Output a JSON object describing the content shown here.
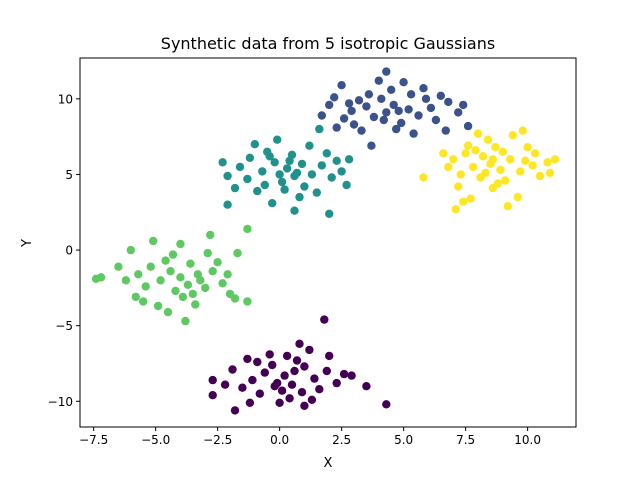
{
  "chart_data": {
    "type": "scatter",
    "title": "Synthetic data from 5 isotropic Gaussians",
    "xlabel": "X",
    "ylabel": "Y",
    "xlim": [
      -8.05,
      11.95
    ],
    "ylim": [
      -11.7,
      12.7
    ],
    "xticks": [
      -7.5,
      -5.0,
      -2.5,
      0.0,
      2.5,
      5.0,
      7.5,
      10.0
    ],
    "xtick_labels": [
      "−7.5",
      "−5.0",
      "−2.5",
      "0.0",
      "2.5",
      "5.0",
      "7.5",
      "10.0"
    ],
    "yticks": [
      -10,
      -5,
      0,
      5,
      10
    ],
    "ytick_labels": [
      "−10",
      "−5",
      "0",
      "5",
      "10"
    ],
    "grid": false,
    "legend": false,
    "series": [
      {
        "color": "#440154",
        "points": [
          [
            0.2,
            -8.3
          ],
          [
            0.5,
            -8.9
          ],
          [
            -0.6,
            -8.1
          ],
          [
            1.0,
            -7.7
          ],
          [
            0.1,
            -9.3
          ],
          [
            -1.1,
            -8.6
          ],
          [
            1.4,
            -8.5
          ],
          [
            0.7,
            -7.3
          ],
          [
            -0.3,
            -7.6
          ],
          [
            0.4,
            -9.8
          ],
          [
            -1.5,
            -9.1
          ],
          [
            1.9,
            -8.0
          ],
          [
            2.3,
            -8.8
          ],
          [
            -1.9,
            -7.9
          ],
          [
            0.9,
            -9.4
          ],
          [
            -0.8,
            -9.5
          ],
          [
            1.6,
            -9.2
          ],
          [
            -0.4,
            -6.9
          ],
          [
            1.2,
            -6.6
          ],
          [
            -1.3,
            -7.2
          ],
          [
            2.6,
            -8.2
          ],
          [
            -2.2,
            -8.9
          ],
          [
            0.0,
            -10.1
          ],
          [
            1.0,
            -10.3
          ],
          [
            -1.8,
            -10.6
          ],
          [
            1.8,
            -4.6
          ],
          [
            3.5,
            -9.0
          ],
          [
            4.3,
            -10.2
          ],
          [
            -2.7,
            -8.6
          ],
          [
            -2.7,
            -9.6
          ],
          [
            2.0,
            -7.0
          ],
          [
            -0.1,
            -8.8
          ],
          [
            0.6,
            -8.0
          ],
          [
            -0.9,
            -7.4
          ],
          [
            1.3,
            -9.9
          ],
          [
            0.3,
            -7.0
          ],
          [
            2.9,
            -8.3
          ],
          [
            -1.2,
            -10.1
          ],
          [
            0.8,
            -6.2
          ],
          [
            -0.2,
            -9.0
          ]
        ]
      },
      {
        "color": "#3b528b",
        "points": [
          [
            4.3,
            9.1
          ],
          [
            4.6,
            9.6
          ],
          [
            3.8,
            8.8
          ],
          [
            5.2,
            9.3
          ],
          [
            4.1,
            10.0
          ],
          [
            3.5,
            9.5
          ],
          [
            5.6,
            8.9
          ],
          [
            4.9,
            8.4
          ],
          [
            3.2,
            9.9
          ],
          [
            4.5,
            10.6
          ],
          [
            2.9,
            9.2
          ],
          [
            6.1,
            9.4
          ],
          [
            5.9,
            10.0
          ],
          [
            2.6,
            8.7
          ],
          [
            4.0,
            11.2
          ],
          [
            4.3,
            11.8
          ],
          [
            3.3,
            7.9
          ],
          [
            5.4,
            7.7
          ],
          [
            2.2,
            10.1
          ],
          [
            6.3,
            8.6
          ],
          [
            6.8,
            9.8
          ],
          [
            7.2,
            9.1
          ],
          [
            7.6,
            8.2
          ],
          [
            2.0,
            9.6
          ],
          [
            2.5,
            10.9
          ],
          [
            5.0,
            11.1
          ],
          [
            3.7,
            6.9
          ],
          [
            6.7,
            7.9
          ],
          [
            1.7,
            8.9
          ],
          [
            4.7,
            8.0
          ],
          [
            3.0,
            8.3
          ],
          [
            5.8,
            10.7
          ],
          [
            2.3,
            8.1
          ],
          [
            7.4,
            9.6
          ],
          [
            4.2,
            8.6
          ],
          [
            3.6,
            10.3
          ],
          [
            5.3,
            10.3
          ],
          [
            4.8,
            9.2
          ],
          [
            2.8,
            9.7
          ],
          [
            6.5,
            10.2
          ]
        ]
      },
      {
        "color": "#21918c",
        "points": [
          [
            0.3,
            5.4
          ],
          [
            0.6,
            4.9
          ],
          [
            -0.2,
            5.8
          ],
          [
            0.9,
            5.7
          ],
          [
            0.1,
            4.5
          ],
          [
            -0.7,
            5.2
          ],
          [
            1.3,
            5.0
          ],
          [
            0.5,
            6.3
          ],
          [
            -0.5,
            6.5
          ],
          [
            0.2,
            4.0
          ],
          [
            -1.3,
            4.7
          ],
          [
            1.7,
            5.6
          ],
          [
            2.1,
            4.8
          ],
          [
            -1.6,
            5.5
          ],
          [
            0.8,
            3.5
          ],
          [
            -0.9,
            3.9
          ],
          [
            1.2,
            6.9
          ],
          [
            -0.1,
            7.3
          ],
          [
            -2.1,
            4.9
          ],
          [
            2.5,
            5.2
          ],
          [
            2.7,
            4.3
          ],
          [
            -2.3,
            5.8
          ],
          [
            0.6,
            2.6
          ],
          [
            -0.3,
            3.1
          ],
          [
            2.0,
            2.4
          ],
          [
            1.6,
            8.0
          ],
          [
            -2.1,
            3.0
          ],
          [
            -1.0,
            7.0
          ],
          [
            1.5,
            3.8
          ],
          [
            -1.8,
            4.1
          ],
          [
            2.8,
            6.0
          ],
          [
            -0.4,
            6.2
          ],
          [
            0.7,
            5.1
          ],
          [
            -1.2,
            6.1
          ],
          [
            1.0,
            4.2
          ],
          [
            0.0,
            5.0
          ],
          [
            1.9,
            6.4
          ],
          [
            -0.6,
            4.3
          ],
          [
            0.4,
            5.9
          ],
          [
            2.3,
            5.9
          ]
        ]
      },
      {
        "color": "#5ec962",
        "points": [
          [
            -4.0,
            -1.8
          ],
          [
            -3.7,
            -2.3
          ],
          [
            -4.4,
            -1.4
          ],
          [
            -3.3,
            -1.6
          ],
          [
            -4.2,
            -2.7
          ],
          [
            -4.8,
            -2.0
          ],
          [
            -3.0,
            -2.5
          ],
          [
            -3.6,
            -0.9
          ],
          [
            -4.6,
            -0.7
          ],
          [
            -3.9,
            -3.1
          ],
          [
            -5.4,
            -2.4
          ],
          [
            -2.7,
            -1.4
          ],
          [
            -2.3,
            -2.2
          ],
          [
            -5.7,
            -1.6
          ],
          [
            -3.4,
            -3.6
          ],
          [
            -4.9,
            -3.7
          ],
          [
            -2.9,
            -0.2
          ],
          [
            -4.0,
            0.4
          ],
          [
            -6.2,
            -2.0
          ],
          [
            -2.1,
            -1.6
          ],
          [
            -2.0,
            -2.9
          ],
          [
            -6.5,
            -1.1
          ],
          [
            -6.0,
            0.0
          ],
          [
            -5.1,
            0.6
          ],
          [
            -7.2,
            -1.8
          ],
          [
            -7.4,
            -1.9
          ],
          [
            -4.5,
            -4.1
          ],
          [
            -3.8,
            -4.7
          ],
          [
            -2.8,
            1.0
          ],
          [
            -1.3,
            1.4
          ],
          [
            -1.7,
            -0.2
          ],
          [
            -1.8,
            -3.2
          ],
          [
            -1.3,
            -3.4
          ],
          [
            -5.8,
            -3.1
          ],
          [
            -5.2,
            -1.1
          ],
          [
            -3.2,
            -2.0
          ],
          [
            -4.3,
            -0.3
          ],
          [
            -3.5,
            -2.9
          ],
          [
            -5.5,
            -3.4
          ],
          [
            -2.5,
            -0.8
          ]
        ]
      },
      {
        "color": "#fde725",
        "points": [
          [
            8.5,
            5.7
          ],
          [
            8.2,
            6.2
          ],
          [
            8.9,
            5.3
          ],
          [
            7.8,
            5.5
          ],
          [
            8.7,
            6.8
          ],
          [
            9.3,
            6.0
          ],
          [
            7.5,
            6.4
          ],
          [
            8.1,
            4.8
          ],
          [
            9.1,
            4.6
          ],
          [
            8.4,
            7.3
          ],
          [
            9.9,
            5.9
          ],
          [
            7.3,
            5.0
          ],
          [
            7.0,
            6.0
          ],
          [
            10.2,
            5.6
          ],
          [
            8.0,
            7.7
          ],
          [
            9.4,
            7.6
          ],
          [
            8.6,
            4.1
          ],
          [
            7.2,
            4.2
          ],
          [
            10.5,
            4.9
          ],
          [
            6.8,
            5.5
          ],
          [
            6.6,
            6.4
          ],
          [
            10.8,
            5.8
          ],
          [
            11.1,
            6.0
          ],
          [
            10.9,
            5.1
          ],
          [
            9.8,
            7.9
          ],
          [
            9.6,
            3.5
          ],
          [
            7.7,
            3.4
          ],
          [
            7.4,
            3.2
          ],
          [
            5.8,
            4.8
          ],
          [
            7.1,
            2.7
          ],
          [
            9.2,
            2.9
          ],
          [
            10.0,
            6.8
          ],
          [
            8.3,
            5.1
          ],
          [
            9.0,
            6.5
          ],
          [
            7.6,
            6.9
          ],
          [
            8.8,
            4.4
          ],
          [
            7.9,
            6.6
          ],
          [
            9.7,
            5.2
          ],
          [
            8.6,
            6.0
          ],
          [
            10.3,
            6.4
          ]
        ]
      }
    ]
  }
}
